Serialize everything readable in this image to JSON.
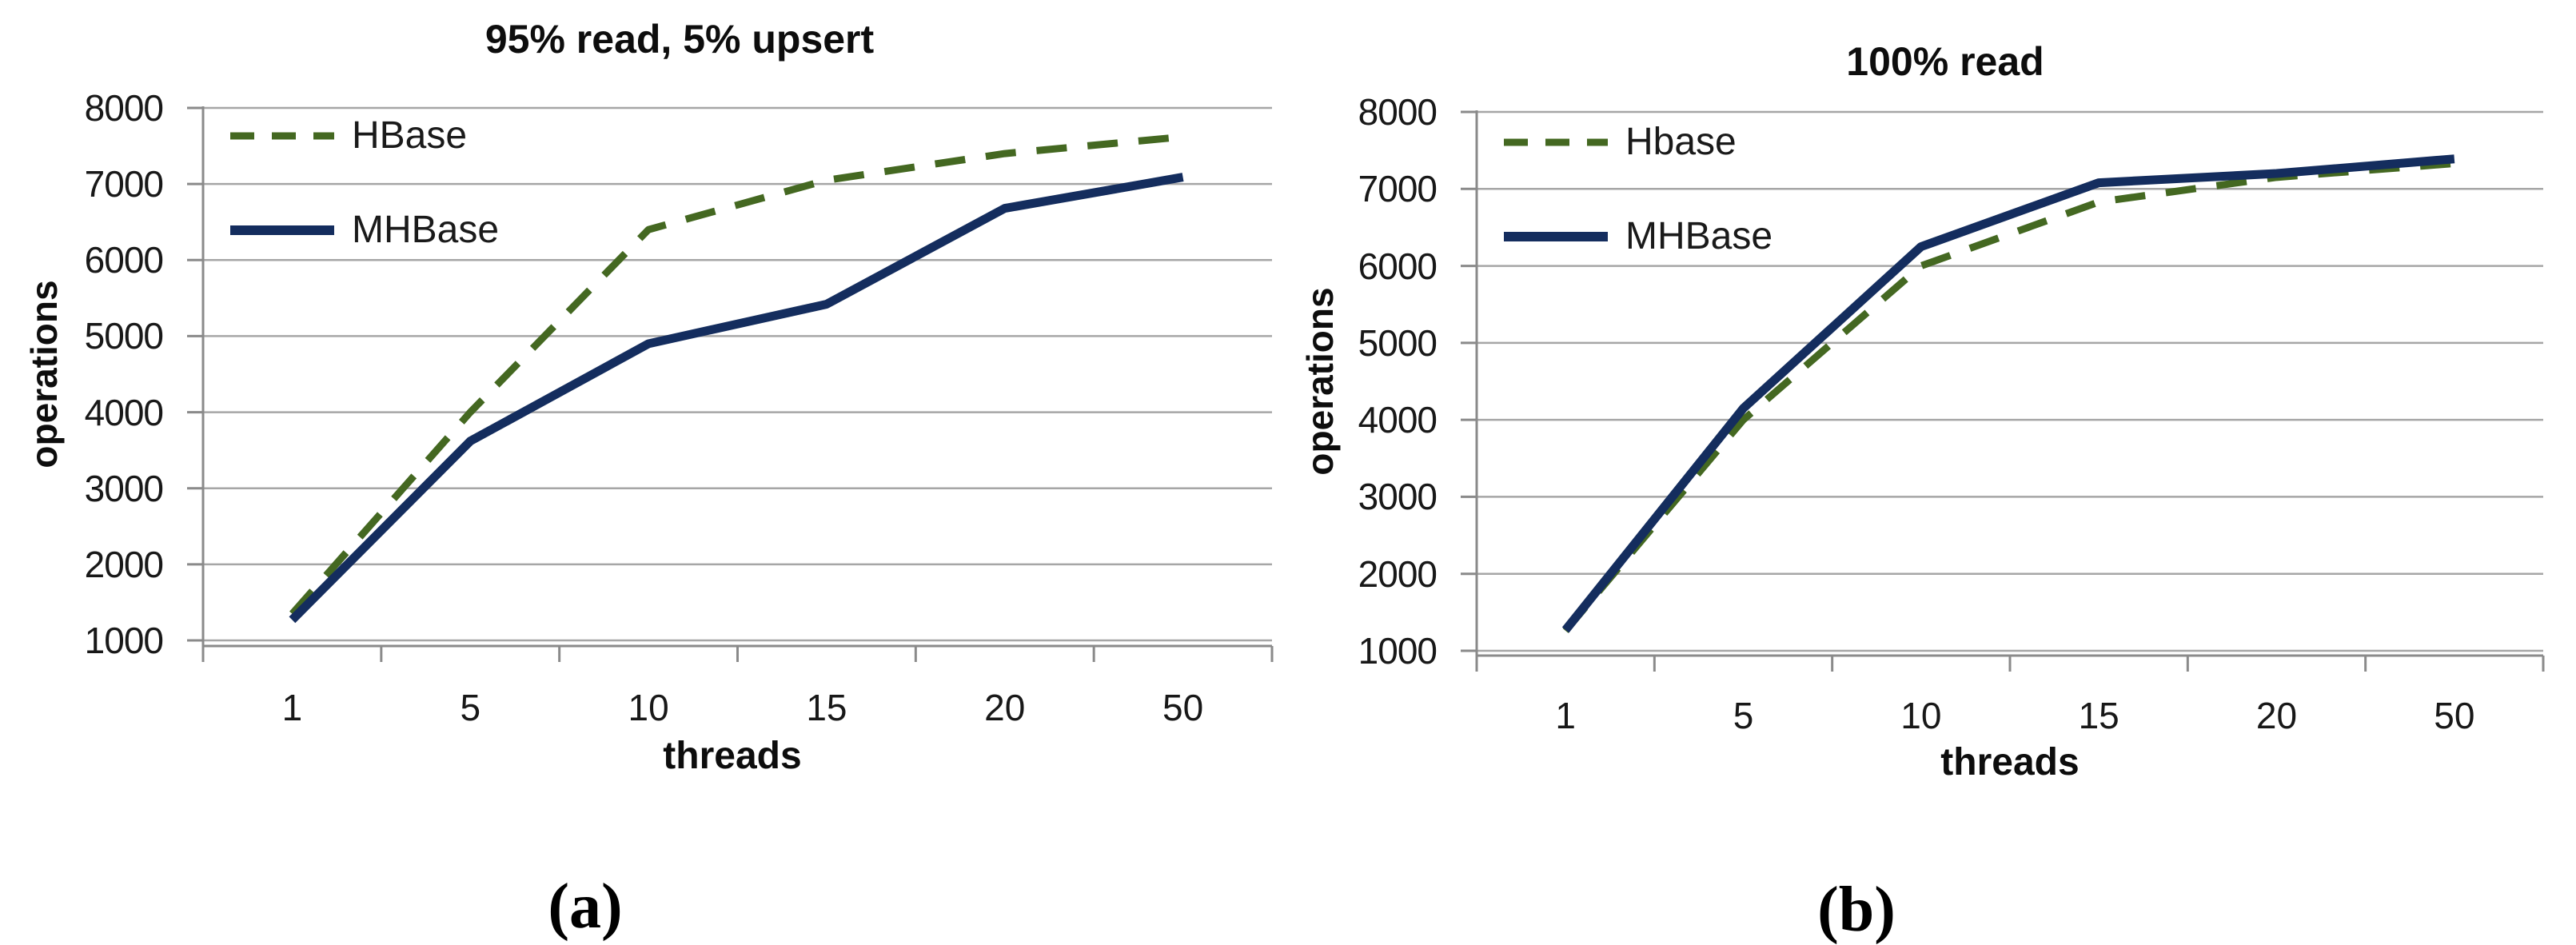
{
  "style": {
    "background": "#ffffff",
    "grid_color": "#a6a6a6",
    "axis_color": "#8a8a8a",
    "text_color": "#111111",
    "hbase_green": "#446821",
    "mhbase_navy": "#142d5e"
  },
  "chart_data": [
    {
      "type": "line",
      "title": "95% read, 5% upsert",
      "xlabel": "threads",
      "ylabel": "operations",
      "caption": "(a)",
      "categories": [
        "1",
        "5",
        "10",
        "15",
        "20",
        "50"
      ],
      "y_ticks": [
        1000,
        2000,
        3000,
        4000,
        5000,
        6000,
        7000,
        8000
      ],
      "ylim": [
        1000,
        8000
      ],
      "grid": "horizontal",
      "legend_position": "inside-top-left",
      "series": [
        {
          "name": "HBase",
          "style": "dashed",
          "color": "#446821",
          "values": [
            1350,
            4000,
            6400,
            7050,
            7400,
            7620
          ]
        },
        {
          "name": "MHBase",
          "style": "solid",
          "color": "#142d5e",
          "values": [
            1270,
            3620,
            4900,
            5420,
            6680,
            7090
          ]
        }
      ]
    },
    {
      "type": "line",
      "title": "100% read",
      "xlabel": "threads",
      "ylabel": "operations",
      "caption": "(b)",
      "categories": [
        "1",
        "5",
        "10",
        "15",
        "20",
        "50"
      ],
      "y_ticks": [
        1000,
        2000,
        3000,
        4000,
        5000,
        6000,
        7000,
        8000
      ],
      "ylim": [
        1000,
        8000
      ],
      "grid": "horizontal",
      "legend_position": "inside-top-left",
      "series": [
        {
          "name": "Hbase",
          "style": "dashed",
          "color": "#446821",
          "values": [
            1260,
            4000,
            6000,
            6830,
            7150,
            7330
          ]
        },
        {
          "name": "MHBase",
          "style": "solid",
          "color": "#142d5e",
          "values": [
            1270,
            4150,
            6250,
            7080,
            7200,
            7390
          ]
        }
      ]
    }
  ]
}
